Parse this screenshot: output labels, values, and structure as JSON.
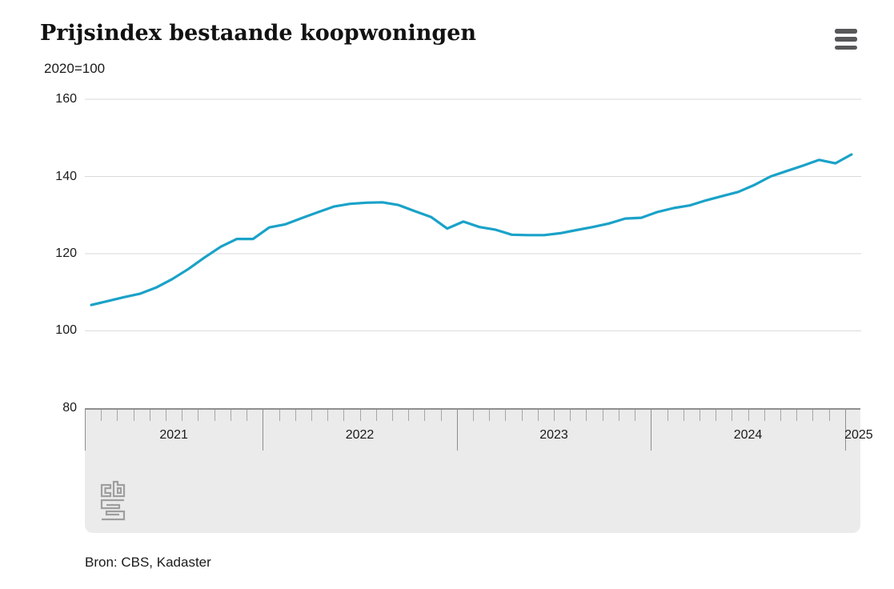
{
  "header": {
    "title": "Prijsindex bestaande koopwoningen",
    "subtitle": "2020=100"
  },
  "menu": {
    "icon": "hamburger-menu-icon"
  },
  "chart_data": {
    "type": "line",
    "title": "Prijsindex bestaande koopwoningen",
    "subtitle": "2020=100",
    "series_name": "Prijsindex bestaande koopwoningen (2020=100)",
    "x": [
      "2021-02",
      "2021-03",
      "2021-04",
      "2021-05",
      "2021-06",
      "2021-07",
      "2021-08",
      "2021-09",
      "2021-10",
      "2021-11",
      "2021-12",
      "2022-01",
      "2022-02",
      "2022-03",
      "2022-04",
      "2022-05",
      "2022-06",
      "2022-07",
      "2022-08",
      "2022-09",
      "2022-10",
      "2022-11",
      "2022-12",
      "2023-01",
      "2023-02",
      "2023-03",
      "2023-04",
      "2023-05",
      "2023-06",
      "2023-07",
      "2023-08",
      "2023-09",
      "2023-10",
      "2023-11",
      "2023-12",
      "2024-01",
      "2024-02",
      "2024-03",
      "2024-04",
      "2024-05",
      "2024-06",
      "2024-07",
      "2024-08",
      "2024-09",
      "2024-10",
      "2024-11",
      "2024-12",
      "2025-01"
    ],
    "values": [
      106.7,
      107.7,
      108.7,
      109.6,
      111.2,
      113.4,
      116.0,
      119.0,
      121.8,
      123.8,
      123.8,
      126.8,
      127.6,
      129.2,
      130.7,
      132.2,
      132.9,
      133.2,
      133.3,
      132.6,
      131.0,
      129.5,
      126.5,
      128.3,
      126.9,
      126.2,
      124.9,
      124.8,
      124.8,
      125.3,
      126.1,
      126.9,
      127.8,
      129.1,
      129.3,
      130.8,
      131.8,
      132.5,
      133.8,
      134.9,
      136.0,
      137.8,
      140.0,
      141.4,
      142.8,
      144.3,
      143.4,
      145.7
    ],
    "ylim": [
      80,
      160
    ],
    "yticks": [
      160,
      140,
      120,
      100,
      80
    ],
    "gridline_values": [
      160,
      140,
      120,
      100
    ],
    "xticks": [
      "2021",
      "2022",
      "2023",
      "2024",
      "2025"
    ],
    "grid": "horizontal",
    "legend": "none",
    "line_color": "#1aa2c8"
  },
  "footer": {
    "source": "Bron: CBS, Kadaster"
  },
  "logo": {
    "name": "cbs-logo"
  },
  "colors": {
    "line": "#1aa2c8",
    "gridline": "#d9d9d9",
    "band_background": "#ebebeb",
    "band_border": "#8f8f8f",
    "text": "#1a1a1a",
    "menu_icon": "#58585a",
    "logo": "#9e9e9e"
  }
}
